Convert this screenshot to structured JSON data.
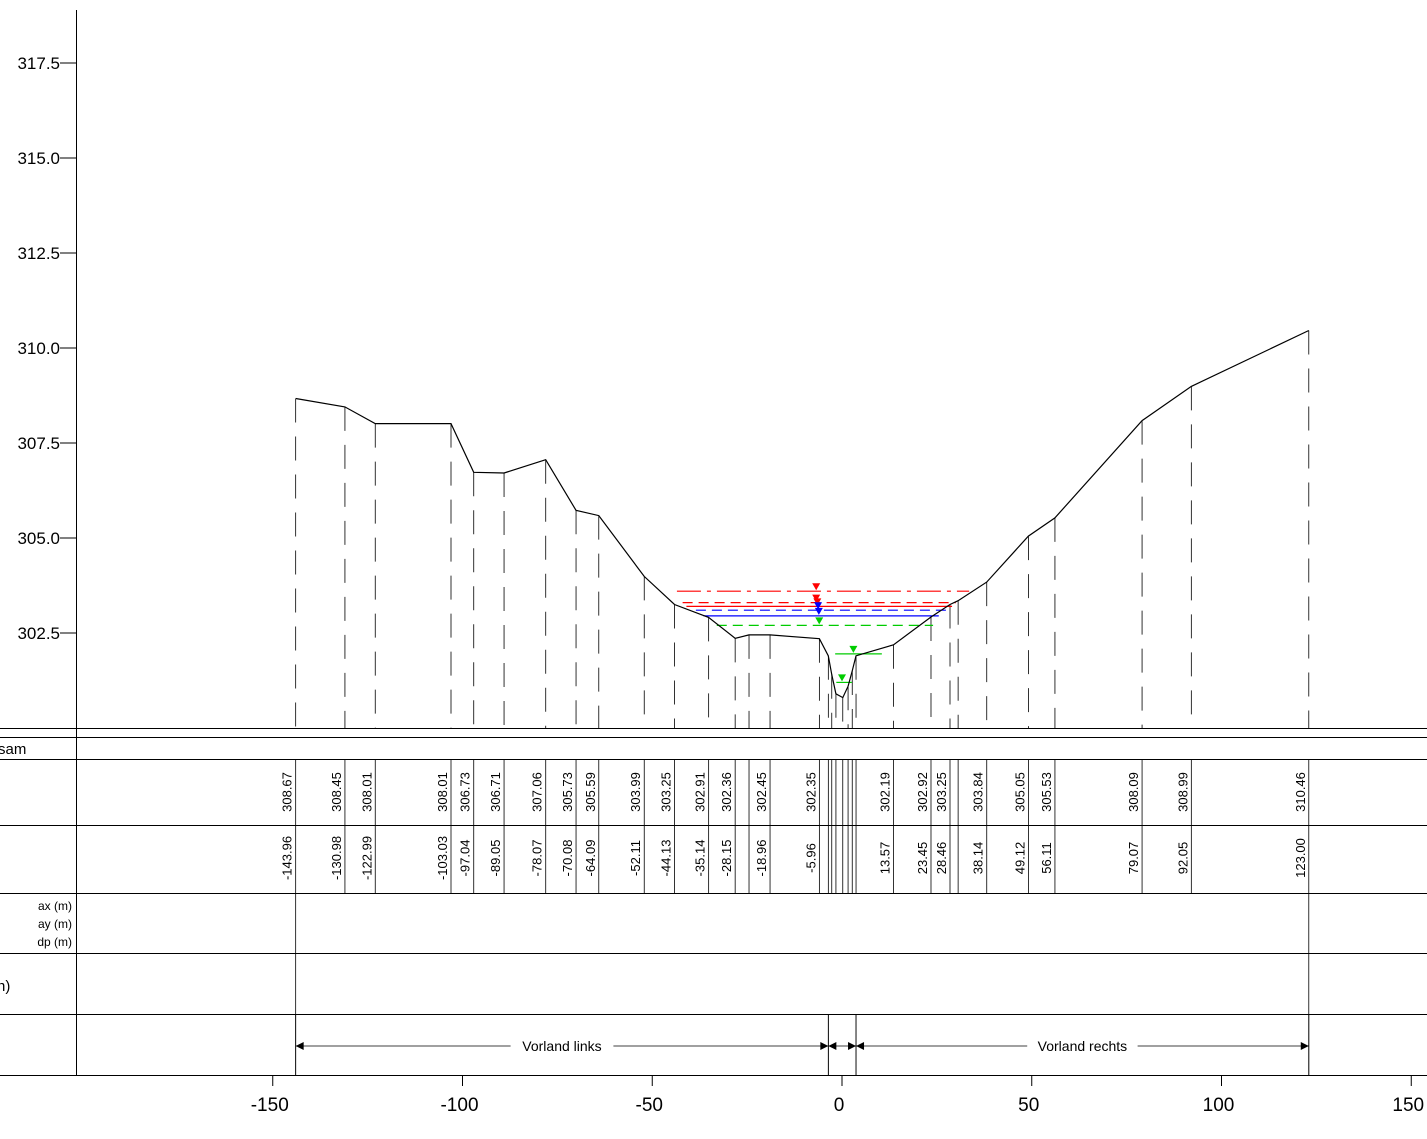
{
  "chart_data": {
    "type": "line",
    "y_axis": {
      "ticks": [
        302.5,
        305.0,
        307.5,
        310.0,
        312.5,
        315.0,
        317.5
      ],
      "tick_labels": [
        "302.5",
        "305.0",
        "307.5",
        "310.0",
        "312.5",
        "315.0",
        "317.5"
      ]
    },
    "x_axis": {
      "ticks": [
        -150,
        -100,
        -50,
        0,
        50,
        100,
        150
      ],
      "tick_labels": [
        "-150",
        "-100",
        "-50",
        "0",
        "50",
        "100",
        "150"
      ]
    },
    "profile": {
      "x": [
        -143.96,
        -130.98,
        -122.99,
        -103.03,
        -97.04,
        -89.05,
        -78.07,
        -70.08,
        -64.09,
        -52.11,
        -44.13,
        -35.14,
        -28.15,
        -24.5,
        -18.96,
        -5.96,
        -3.6,
        -2.7,
        -1.6,
        0.2,
        1.6,
        2.7,
        3.7,
        13.57,
        23.45,
        28.46,
        30.6,
        38.14,
        49.12,
        56.11,
        79.07,
        92.05,
        123.0
      ],
      "z": [
        308.67,
        308.45,
        308.01,
        308.01,
        306.73,
        306.71,
        307.06,
        305.73,
        305.59,
        303.99,
        303.25,
        302.91,
        302.36,
        302.45,
        302.45,
        302.35,
        301.9,
        301.4,
        300.9,
        300.8,
        301.1,
        301.5,
        301.9,
        302.19,
        302.92,
        303.25,
        303.35,
        303.84,
        305.05,
        305.53,
        308.09,
        308.99,
        310.46
      ]
    },
    "water_levels": [
      {
        "color": "#ff0000",
        "style": "dashdot",
        "z": 303.6,
        "x_from": -43.5,
        "x_to": 33.5,
        "marker_x": -6.8
      },
      {
        "color": "#ff0000",
        "style": "dashed",
        "z": 303.3,
        "x_from": -42.0,
        "x_to": 30.0,
        "marker_x": -6.8
      },
      {
        "color": "#ff0000",
        "style": "solid",
        "z": 303.2,
        "x_from": -41.0,
        "x_to": 29.0,
        "marker_x": -6.5
      },
      {
        "color": "#0000ff",
        "style": "dashed",
        "z": 303.1,
        "x_from": -38.5,
        "x_to": 27.5,
        "marker_x": -6.3
      },
      {
        "color": "#0000ff",
        "style": "solid",
        "z": 302.95,
        "x_from": -36.5,
        "x_to": 25.5,
        "marker_x": -6.1
      },
      {
        "color": "#00cc00",
        "style": "dashed",
        "z": 302.7,
        "x_from": -33.0,
        "x_to": 24.0,
        "marker_x": -6.0
      },
      {
        "color": "#00cc00",
        "style": "solid",
        "z": 301.95,
        "x_from": -1.8,
        "x_to": 10.5,
        "marker_x": 3.0
      },
      {
        "color": "#00cc00",
        "style": "solid",
        "z": 301.2,
        "x_from": -1.5,
        "x_to": 2.6,
        "marker_x": 0.0
      }
    ],
    "bands": {
      "band1_label": "sam",
      "band3_lines": [
        "ax (m)",
        "ay (m)",
        "dp (m)"
      ],
      "band4_label": "n)"
    },
    "height_labels": {
      "x": [
        -143.96,
        -130.98,
        -122.99,
        -103.03,
        -97.04,
        -89.05,
        -78.07,
        -70.08,
        -64.09,
        -52.11,
        -44.13,
        -35.14,
        -28.15,
        -18.96,
        -5.96,
        13.57,
        23.45,
        28.46,
        38.14,
        49.12,
        56.11,
        79.07,
        92.05,
        123.0
      ],
      "labels": [
        "308.67",
        "308.45",
        "308.01",
        "308.01",
        "306.73",
        "306.71",
        "307.06",
        "305.73",
        "305.59",
        "303.99",
        "303.25",
        "302.91",
        "302.36",
        "302.45",
        "302.35",
        "302.19",
        "302.92",
        "303.25",
        "303.84",
        "305.05",
        "305.53",
        "308.09",
        "308.99",
        "310.46"
      ]
    },
    "station_labels": {
      "x": [
        -143.96,
        -130.98,
        -122.99,
        -103.03,
        -97.04,
        -89.05,
        -78.07,
        -70.08,
        -64.09,
        -52.11,
        -44.13,
        -35.14,
        -28.15,
        -18.96,
        -5.96,
        13.57,
        23.45,
        28.46,
        38.14,
        49.12,
        56.11,
        79.07,
        92.05,
        123.0
      ],
      "labels": [
        "-143.96",
        "-130.98",
        "-122.99",
        "-103.03",
        "-97.04",
        "-89.05",
        "-78.07",
        "-70.08",
        "-64.09",
        "-52.11",
        "-44.13",
        "-35.14",
        "-28.15",
        "-18.96",
        "-5.96",
        "13.57",
        "23.45",
        "28.46",
        "38.14",
        "49.12",
        "56.11",
        "79.07",
        "92.05",
        "123.00"
      ]
    },
    "zones": [
      {
        "label": "Vorland links",
        "from": -143.96,
        "to": -3.6
      },
      {
        "label": "",
        "from": -3.6,
        "to": 3.7
      },
      {
        "label": "Vorland rechts",
        "from": 3.7,
        "to": 123.0
      }
    ]
  }
}
